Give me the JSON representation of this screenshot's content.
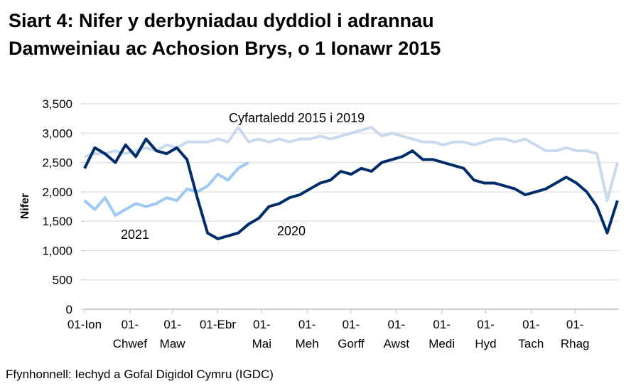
{
  "title_line1": "Siart 4: Nifer y derbyniadau dyddiol i adrannau",
  "title_line2": "Damweiniau ac Achosion Brys, o 1 Ionawr 2015",
  "source": "Ffynhonnell: Iechyd a Gofal Digidol Cymru (IGDC)",
  "chart_data": {
    "type": "line",
    "title": "Siart 4: Nifer y derbyniadau dyddiol i adrannau Damweiniau ac Achosion Brys, o 1 Ionawr 2015",
    "ylabel": "Nifer",
    "xlabel": "",
    "ylim": [
      0,
      3500
    ],
    "yticks": [
      "0",
      "500",
      "1,000",
      "1,500",
      "2,000",
      "2,500",
      "3,000",
      "3,500"
    ],
    "ytick_values": [
      0,
      500,
      1000,
      1500,
      2000,
      2500,
      3000,
      3500
    ],
    "xticks": [
      {
        "day": 0,
        "line1": "01-Ion",
        "line2": ""
      },
      {
        "day": 31,
        "line1": "01-",
        "line2": "Chwef"
      },
      {
        "day": 60,
        "line1": "01-",
        "line2": "Maw"
      },
      {
        "day": 91,
        "line1": "01-Ebr",
        "line2": ""
      },
      {
        "day": 121,
        "line1": "01-",
        "line2": "Mai"
      },
      {
        "day": 152,
        "line1": "01-",
        "line2": "Meh"
      },
      {
        "day": 182,
        "line1": "01-",
        "line2": "Gorff"
      },
      {
        "day": 213,
        "line1": "01-",
        "line2": "Awst"
      },
      {
        "day": 244,
        "line1": "01-",
        "line2": "Medi"
      },
      {
        "day": 274,
        "line1": "01-",
        "line2": "Hyd"
      },
      {
        "day": 305,
        "line1": "01-",
        "line2": "Tach"
      },
      {
        "day": 335,
        "line1": "01-",
        "line2": "Rhag"
      }
    ],
    "grid": true,
    "x_day_of_year": [
      0,
      7,
      14,
      21,
      28,
      35,
      42,
      49,
      56,
      63,
      70,
      77,
      84,
      91,
      98,
      105,
      112,
      119,
      126,
      133,
      140,
      147,
      154,
      161,
      168,
      175,
      182,
      189,
      196,
      203,
      210,
      217,
      224,
      231,
      238,
      245,
      252,
      259,
      266,
      273,
      280,
      287,
      294,
      301,
      308,
      315,
      322,
      329,
      336,
      343,
      350,
      357,
      364
    ],
    "series": [
      {
        "name": "Cyfartaledd 2015 i 2019",
        "color": "#c9daee",
        "values": [
          2600,
          2650,
          2650,
          2700,
          2650,
          2700,
          2750,
          2700,
          2800,
          2750,
          2850,
          2850,
          2850,
          2900,
          2850,
          3100,
          2850,
          2900,
          2850,
          2900,
          2850,
          2900,
          2900,
          2950,
          2900,
          2950,
          3000,
          3050,
          3100,
          2950,
          3000,
          2950,
          2900,
          2850,
          2850,
          2800,
          2850,
          2850,
          2800,
          2850,
          2900,
          2900,
          2850,
          2900,
          2800,
          2700,
          2700,
          2750,
          2700,
          2700,
          2650,
          1850,
          2500
        ]
      },
      {
        "name": "2020",
        "color": "#002d6a",
        "values": [
          2400,
          2750,
          2650,
          2500,
          2800,
          2600,
          2900,
          2700,
          2650,
          2750,
          2550,
          1900,
          1300,
          1200,
          1250,
          1300,
          1450,
          1550,
          1750,
          1800,
          1900,
          1950,
          2050,
          2150,
          2200,
          2350,
          2300,
          2400,
          2350,
          2500,
          2550,
          2600,
          2700,
          2550,
          2550,
          2500,
          2450,
          2400,
          2200,
          2150,
          2150,
          2100,
          2050,
          1950,
          2000,
          2050,
          2150,
          2250,
          2150,
          2000,
          1750,
          1300,
          1850
        ]
      },
      {
        "name": "2021",
        "color": "#9ec9f5",
        "values": [
          1850,
          1700,
          1900,
          1600,
          1700,
          1800,
          1750,
          1800,
          1900,
          1850,
          2050,
          2000,
          2100,
          2300,
          2200,
          2400,
          2500,
          null,
          null,
          null,
          null,
          null,
          null,
          null,
          null,
          null,
          null,
          null,
          null,
          null,
          null,
          null,
          null,
          null,
          null,
          null,
          null,
          null,
          null,
          null,
          null,
          null,
          null,
          null,
          null,
          null,
          null,
          null,
          null,
          null,
          null,
          null,
          null
        ]
      }
    ],
    "annotations": [
      "Cyfartaledd 2015 i 2019",
      "2021",
      "2020"
    ]
  }
}
